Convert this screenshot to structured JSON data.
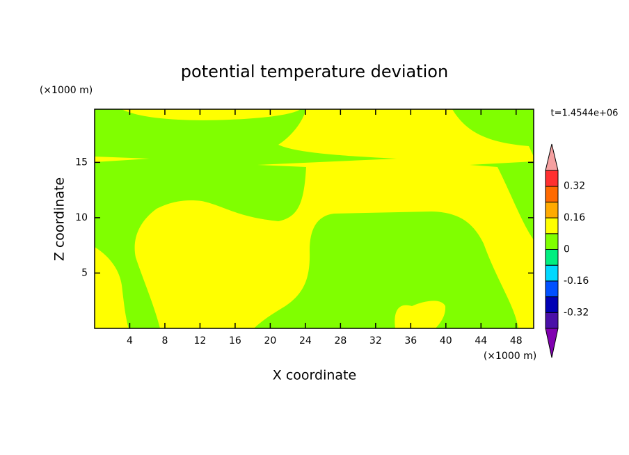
{
  "chart_data": {
    "type": "contour",
    "title": "potential temperature deviation",
    "x_label": "X coordinate",
    "y_label": "Z coordinate",
    "x_unit": "(×1000 m)",
    "y_unit": "(×1000 m)",
    "time_label": "t=1.4544e+06",
    "xlim": [
      0,
      50
    ],
    "ylim": [
      0,
      19.8
    ],
    "xticks": [
      4,
      8,
      12,
      16,
      20,
      24,
      28,
      32,
      36,
      40,
      44,
      48
    ],
    "yticks": [
      5,
      10,
      15
    ],
    "colorbar": {
      "levels": [
        -0.4,
        -0.32,
        -0.24,
        -0.16,
        -0.08,
        0,
        0.08,
        0.16,
        0.24,
        0.32,
        0.4
      ],
      "colors": [
        "#8000b0",
        "#4a10a8",
        "#0000b4",
        "#0050ff",
        "#00d8ff",
        "#00ee80",
        "#80ff00",
        "#ffff00",
        "#ffaa00",
        "#ff6a00",
        "#ff3030",
        "#f5a0a0"
      ],
      "ticks": [
        -0.32,
        -0.16,
        0,
        0.16,
        0.32
      ]
    }
  }
}
